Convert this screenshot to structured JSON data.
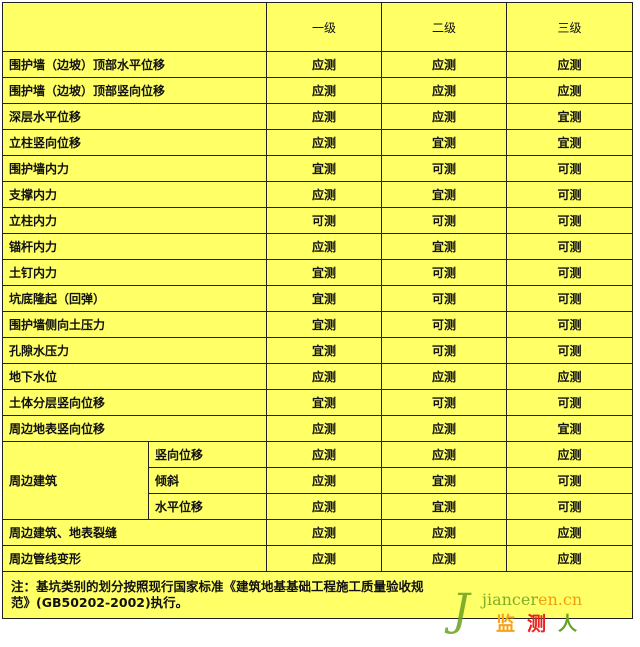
{
  "header": [
    "",
    "一级",
    "二级",
    "三级"
  ],
  "rows": [
    {
      "item": "围护墙（边坡）顶部水平位移",
      "values": [
        "应测",
        "应测",
        "应测"
      ]
    },
    {
      "item": "围护墙（边坡）顶部竖向位移",
      "values": [
        "应测",
        "应测",
        "应测"
      ]
    },
    {
      "item": "深层水平位移",
      "values": [
        "应测",
        "应测",
        "宜测"
      ]
    },
    {
      "item": "立柱竖向位移",
      "values": [
        "应测",
        "宜测",
        "宜测"
      ]
    },
    {
      "item": "围护墙内力",
      "values": [
        "宜测",
        "可测",
        "可测"
      ]
    },
    {
      "item": "支撑内力",
      "values": [
        "应测",
        "宜测",
        "可测"
      ]
    },
    {
      "item": "立柱内力",
      "values": [
        "可测",
        "可测",
        "可测"
      ]
    },
    {
      "item": "锚杆内力",
      "values": [
        "应测",
        "宜测",
        "可测"
      ]
    },
    {
      "item": "土钉内力",
      "values": [
        "宜测",
        "可测",
        "可测"
      ]
    },
    {
      "item": "坑底隆起（回弹）",
      "values": [
        "宜测",
        "可测",
        "可测"
      ]
    },
    {
      "item": "围护墙侧向土压力",
      "values": [
        "宜测",
        "可测",
        "可测"
      ]
    },
    {
      "item": "孔隙水压力",
      "values": [
        "宜测",
        "可测",
        "可测"
      ]
    },
    {
      "item": "地下水位",
      "values": [
        "应测",
        "应测",
        "应测"
      ]
    },
    {
      "item": "土体分层竖向位移",
      "values": [
        "宜测",
        "可测",
        "可测"
      ]
    },
    {
      "item": "周边地表竖向位移",
      "values": [
        "应测",
        "应测",
        "宜测"
      ]
    }
  ],
  "group": {
    "item": "周边建筑",
    "subrows": [
      {
        "item": "竖向位移",
        "values": [
          "应测",
          "应测",
          "应测"
        ]
      },
      {
        "item": "倾斜",
        "values": [
          "应测",
          "宜测",
          "可测"
        ]
      },
      {
        "item": "水平位移",
        "values": [
          "应测",
          "宜测",
          "可测"
        ]
      }
    ]
  },
  "tail_rows": [
    {
      "item": "周边建筑、地表裂缝",
      "values": [
        "应测",
        "应测",
        "应测"
      ]
    },
    {
      "item": "周边管线变形",
      "values": [
        "应测",
        "应测",
        "应测"
      ]
    }
  ],
  "note": "注：基坑类别的划分按照现行国家标准《建筑地基基础工程施工质量验收规范》(GB50202-2002)执行。",
  "watermark": {
    "en": "jiancer",
    "en_accent": "en.cn",
    "cn": [
      "监",
      "测",
      "人"
    ]
  },
  "colors": {
    "background": "#ffff66",
    "border": "#222222"
  }
}
